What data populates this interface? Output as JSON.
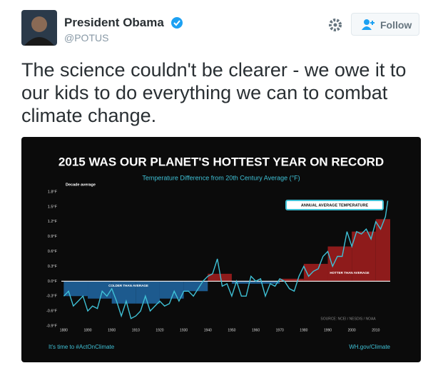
{
  "tweet": {
    "name": "President Obama",
    "handle": "@POTUS",
    "follow": "Follow",
    "text": "The science couldn't be clearer - we owe it to our kids to do everything we can to combat climate change."
  },
  "chart_data": {
    "type": "bar-line",
    "title": "2015 WAS OUR PLANET'S HOTTEST YEAR ON RECORD",
    "subtitle": "Temperature Difference from 20th Century Average (°F)",
    "legend_label": "Decade average",
    "annotations": {
      "line": "ANNUAL AVERAGE TEMPERATURE",
      "below": "COLDER THAN AVERAGE",
      "above": "HOTTER THAN AVERAGE",
      "source": "SOURCE: NCEI / NESDIS / NOAA"
    },
    "footer_left": "It's time to #ActOnClimate",
    "footer_right": "WH.gov/Climate",
    "xlim": [
      1879,
      2016
    ],
    "xticks": [
      1880,
      1890,
      1900,
      1910,
      1920,
      1930,
      1940,
      1950,
      1960,
      1970,
      1980,
      1990,
      2000,
      2010
    ],
    "ylim": [
      -0.9,
      1.8
    ],
    "yticks": [
      {
        "value": -0.9,
        "label": "-0.9°F"
      },
      {
        "value": -0.6,
        "label": "-0.6°F"
      },
      {
        "value": -0.3,
        "label": "-0.3°F"
      },
      {
        "value": 0,
        "label": "0.0°F"
      },
      {
        "value": 0.3,
        "label": "0.3°F"
      },
      {
        "value": 0.6,
        "label": "0.6°F"
      },
      {
        "value": 0.9,
        "label": "0.9°F"
      },
      {
        "value": 1.2,
        "label": "1.2°F"
      },
      {
        "value": 1.5,
        "label": "1.5°F"
      },
      {
        "value": 1.8,
        "label": "1.8°F"
      }
    ],
    "decades": {
      "name": "Decade average",
      "colors": {
        "below": "#1d5a8e",
        "above": "#8e1b1b"
      },
      "x": [
        1880,
        1890,
        1900,
        1910,
        1920,
        1930,
        1940,
        1950,
        1960,
        1970,
        1980,
        1990,
        2000,
        2010
      ],
      "values": [
        -0.3,
        -0.35,
        -0.45,
        -0.45,
        -0.35,
        -0.2,
        0.15,
        -0.05,
        -0.05,
        0.05,
        0.35,
        0.7,
        1.0,
        1.25
      ]
    },
    "series": [
      {
        "name": "Annual average temperature",
        "color": "#3fc1d6",
        "x": [
          1880,
          1882,
          1884,
          1886,
          1888,
          1890,
          1892,
          1894,
          1896,
          1898,
          1900,
          1902,
          1904,
          1906,
          1908,
          1910,
          1912,
          1914,
          1916,
          1918,
          1920,
          1922,
          1924,
          1926,
          1928,
          1930,
          1932,
          1934,
          1936,
          1938,
          1940,
          1942,
          1944,
          1946,
          1948,
          1950,
          1952,
          1954,
          1956,
          1958,
          1960,
          1962,
          1964,
          1966,
          1968,
          1970,
          1972,
          1974,
          1976,
          1978,
          1980,
          1982,
          1984,
          1986,
          1988,
          1990,
          1992,
          1994,
          1996,
          1998,
          2000,
          2002,
          2004,
          2006,
          2008,
          2010,
          2012,
          2014,
          2015
        ],
        "values": [
          -0.3,
          -0.2,
          -0.5,
          -0.4,
          -0.3,
          -0.6,
          -0.5,
          -0.55,
          -0.2,
          -0.3,
          -0.15,
          -0.4,
          -0.7,
          -0.4,
          -0.75,
          -0.7,
          -0.6,
          -0.3,
          -0.6,
          -0.5,
          -0.4,
          -0.5,
          -0.45,
          -0.2,
          -0.4,
          -0.2,
          -0.2,
          -0.3,
          -0.15,
          0.0,
          0.1,
          0.15,
          0.45,
          -0.1,
          -0.05,
          -0.3,
          0.0,
          -0.3,
          -0.3,
          0.1,
          0.0,
          0.05,
          -0.3,
          -0.05,
          -0.1,
          0.05,
          0.0,
          -0.15,
          -0.2,
          0.1,
          0.3,
          0.1,
          0.2,
          0.25,
          0.5,
          0.6,
          0.3,
          0.5,
          0.5,
          1.0,
          0.7,
          1.0,
          0.95,
          1.05,
          0.85,
          1.2,
          1.05,
          1.3,
          1.62
        ]
      }
    ]
  }
}
